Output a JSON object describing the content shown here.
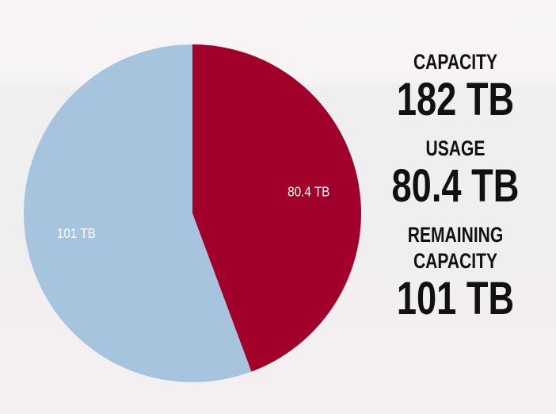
{
  "chart_data": {
    "type": "pie",
    "values": [
      80.4,
      101
    ],
    "value_labels": [
      "80.4 TB",
      "101 TB"
    ],
    "colors": [
      "#a0002a",
      "#a6c4de"
    ]
  },
  "stats": [
    {
      "label": "CAPACITY",
      "value": "182 TB"
    },
    {
      "label": "USAGE",
      "value": "80.4 TB"
    },
    {
      "label": "REMAINING CAPACITY",
      "value": "101 TB"
    }
  ]
}
